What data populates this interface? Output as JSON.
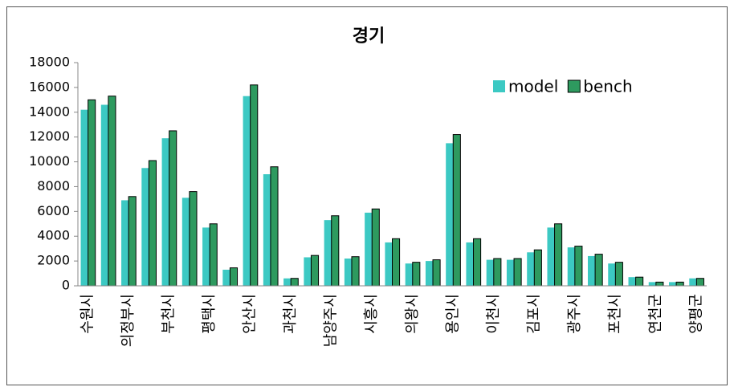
{
  "chart_data": {
    "type": "bar",
    "title": "경기",
    "categories": [
      "수원시",
      null,
      "의정부시",
      null,
      "부천시",
      null,
      "평택시",
      null,
      "안산시",
      null,
      "과천시",
      null,
      "남양주시",
      null,
      "시흥시",
      null,
      "의왕시",
      null,
      "용인시",
      null,
      "이천시",
      null,
      "김포시",
      null,
      "광주시",
      null,
      "포천시",
      null,
      "연천군",
      null,
      "양평군"
    ],
    "series": [
      {
        "name": "model",
        "color": "#3cc9c3",
        "values": [
          14200,
          14600,
          6900,
          9500,
          11900,
          7100,
          4700,
          1300,
          15300,
          9000,
          600,
          2300,
          5300,
          2200,
          5900,
          3500,
          1800,
          2000,
          11500,
          3500,
          2100,
          2100,
          2700,
          4700,
          3100,
          2400,
          1800,
          700,
          300,
          300,
          600
        ]
      },
      {
        "name": "bench",
        "color": "#2e9a5f",
        "values": [
          15000,
          15300,
          7200,
          10100,
          12500,
          7600,
          5000,
          1450,
          16200,
          9600,
          600,
          2450,
          5650,
          2350,
          6200,
          3800,
          1900,
          2100,
          12200,
          3800,
          2200,
          2200,
          2900,
          5000,
          3200,
          2550,
          1900,
          700,
          300,
          300,
          600
        ]
      }
    ],
    "ylim": [
      0,
      18000
    ],
    "yticks": [
      0,
      2000,
      4000,
      6000,
      8000,
      10000,
      12000,
      14000,
      16000,
      18000
    ],
    "grid": false,
    "legend": "top-right"
  }
}
